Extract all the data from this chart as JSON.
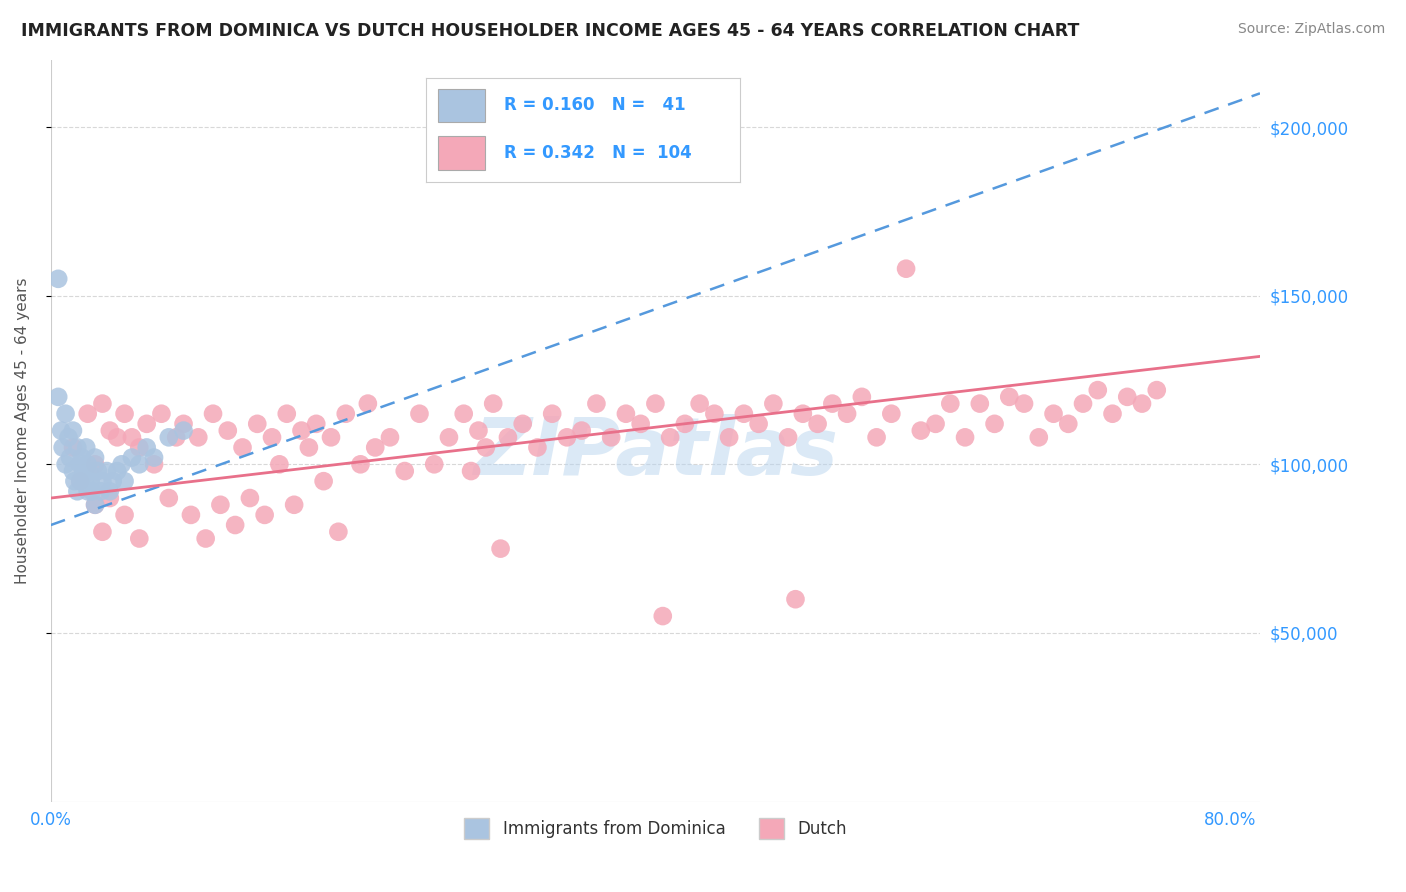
{
  "title": "IMMIGRANTS FROM DOMINICA VS DUTCH HOUSEHOLDER INCOME AGES 45 - 64 YEARS CORRELATION CHART",
  "source": "Source: ZipAtlas.com",
  "ylabel": "Householder Income Ages 45 - 64 years",
  "ytick_values": [
    50000,
    100000,
    150000,
    200000
  ],
  "ylim_max": 220000,
  "xlim_max": 0.82,
  "r_dominica": 0.16,
  "n_dominica": 41,
  "r_dutch": 0.342,
  "n_dutch": 104,
  "legend_label_1": "Immigrants from Dominica",
  "legend_label_2": "Dutch",
  "dominica_color": "#aac4e0",
  "dutch_color": "#f4a8b8",
  "dominica_line_color": "#5599dd",
  "dutch_line_color": "#e8708a",
  "watermark": "ZIPatlas",
  "bg_color": "#ffffff",
  "dominica_x": [
    0.005,
    0.005,
    0.007,
    0.008,
    0.01,
    0.01,
    0.012,
    0.013,
    0.015,
    0.015,
    0.016,
    0.018,
    0.018,
    0.02,
    0.02,
    0.021,
    0.022,
    0.023,
    0.024,
    0.025,
    0.025,
    0.026,
    0.027,
    0.028,
    0.03,
    0.03,
    0.032,
    0.034,
    0.035,
    0.038,
    0.04,
    0.042,
    0.045,
    0.048,
    0.05,
    0.055,
    0.06,
    0.065,
    0.07,
    0.08,
    0.09
  ],
  "dominica_y": [
    155000,
    120000,
    110000,
    105000,
    115000,
    100000,
    108000,
    102000,
    110000,
    98000,
    95000,
    105000,
    92000,
    100000,
    95000,
    102000,
    98000,
    95000,
    105000,
    100000,
    92000,
    98000,
    95000,
    92000,
    102000,
    88000,
    98000,
    92000,
    95000,
    98000,
    92000,
    95000,
    98000,
    100000,
    95000,
    102000,
    100000,
    105000,
    102000,
    108000,
    110000
  ],
  "dutch_x": [
    0.015,
    0.02,
    0.025,
    0.03,
    0.03,
    0.035,
    0.035,
    0.04,
    0.04,
    0.045,
    0.05,
    0.05,
    0.055,
    0.06,
    0.06,
    0.065,
    0.07,
    0.075,
    0.08,
    0.085,
    0.09,
    0.095,
    0.1,
    0.105,
    0.11,
    0.115,
    0.12,
    0.125,
    0.13,
    0.135,
    0.14,
    0.145,
    0.15,
    0.155,
    0.16,
    0.165,
    0.17,
    0.175,
    0.18,
    0.185,
    0.19,
    0.2,
    0.21,
    0.215,
    0.22,
    0.23,
    0.24,
    0.25,
    0.26,
    0.27,
    0.28,
    0.285,
    0.29,
    0.295,
    0.3,
    0.31,
    0.32,
    0.33,
    0.34,
    0.35,
    0.36,
    0.37,
    0.38,
    0.39,
    0.4,
    0.41,
    0.42,
    0.43,
    0.44,
    0.45,
    0.46,
    0.47,
    0.48,
    0.49,
    0.5,
    0.51,
    0.52,
    0.53,
    0.54,
    0.55,
    0.56,
    0.57,
    0.58,
    0.59,
    0.6,
    0.61,
    0.62,
    0.63,
    0.64,
    0.65,
    0.66,
    0.67,
    0.68,
    0.69,
    0.7,
    0.71,
    0.72,
    0.73,
    0.74,
    0.75,
    0.195,
    0.305,
    0.415,
    0.505
  ],
  "dutch_y": [
    105000,
    95000,
    115000,
    100000,
    88000,
    118000,
    80000,
    110000,
    90000,
    108000,
    115000,
    85000,
    108000,
    105000,
    78000,
    112000,
    100000,
    115000,
    90000,
    108000,
    112000,
    85000,
    108000,
    78000,
    115000,
    88000,
    110000,
    82000,
    105000,
    90000,
    112000,
    85000,
    108000,
    100000,
    115000,
    88000,
    110000,
    105000,
    112000,
    95000,
    108000,
    115000,
    100000,
    118000,
    105000,
    108000,
    98000,
    115000,
    100000,
    108000,
    115000,
    98000,
    110000,
    105000,
    118000,
    108000,
    112000,
    105000,
    115000,
    108000,
    110000,
    118000,
    108000,
    115000,
    112000,
    118000,
    108000,
    112000,
    118000,
    115000,
    108000,
    115000,
    112000,
    118000,
    108000,
    115000,
    112000,
    118000,
    115000,
    120000,
    108000,
    115000,
    158000,
    110000,
    112000,
    118000,
    108000,
    118000,
    112000,
    120000,
    118000,
    108000,
    115000,
    112000,
    118000,
    122000,
    115000,
    120000,
    118000,
    122000,
    80000,
    75000,
    55000,
    60000
  ]
}
